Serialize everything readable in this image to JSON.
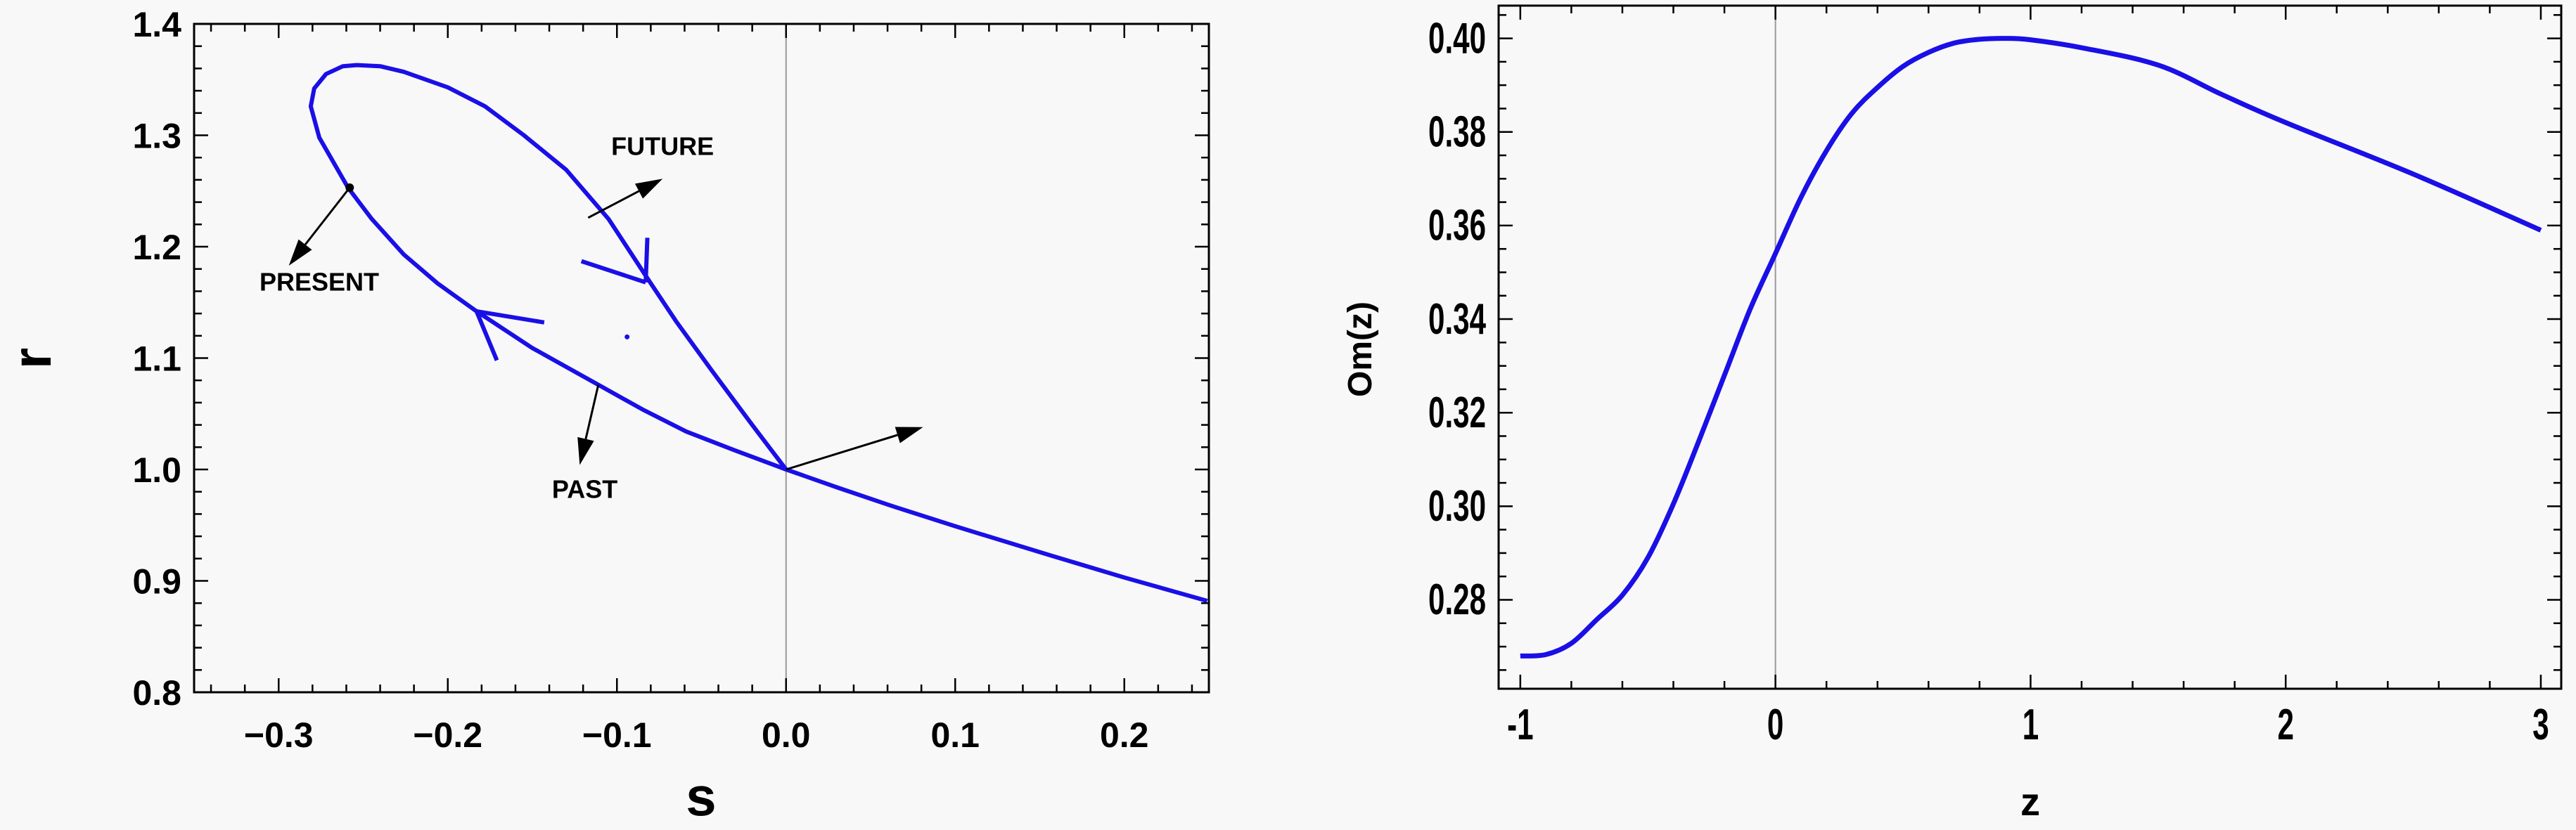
{
  "chart_data": [
    {
      "type": "line",
      "xlabel": "s",
      "ylabel": "r",
      "xlim": [
        -0.35,
        0.25
      ],
      "ylim": [
        0.8,
        1.4
      ],
      "xticks": [
        -0.3,
        -0.2,
        -0.1,
        0.0,
        0.1,
        0.2
      ],
      "xtick_labels": [
        "−0.3",
        "−0.2",
        "−0.1",
        "0.0",
        "0.1",
        "0.2"
      ],
      "yticks": [
        0.8,
        0.9,
        1.0,
        1.1,
        1.2,
        1.3,
        1.4
      ],
      "ytick_labels": [
        "0.8",
        "0.9",
        "1.0",
        "1.1",
        "1.2",
        "1.3",
        "1.4"
      ],
      "grid": false,
      "reference_line_x": 0,
      "line_color": "#1a0fe6",
      "series": [
        {
          "points": [
            [
              0.249,
              0.882
            ],
            [
              0.2,
              0.903
            ],
            [
              0.156,
              0.923
            ],
            [
              0.1,
              0.949
            ],
            [
              0.061,
              0.968
            ],
            [
              0.03,
              0.984
            ],
            [
              0,
              1.0
            ],
            [
              -0.03,
              1.017
            ],
            [
              -0.059,
              1.034
            ],
            [
              -0.085,
              1.054
            ],
            [
              -0.111,
              1.076
            ],
            [
              -0.15,
              1.109
            ],
            [
              -0.183,
              1.142
            ],
            [
              -0.206,
              1.167
            ],
            [
              -0.226,
              1.193
            ],
            [
              -0.245,
              1.225
            ],
            [
              -0.259,
              1.253
            ],
            [
              -0.276,
              1.298
            ],
            [
              -0.281,
              1.326
            ],
            [
              -0.279,
              1.342
            ],
            [
              -0.272,
              1.355
            ],
            [
              -0.262,
              1.362
            ],
            [
              -0.254,
              1.363
            ],
            [
              -0.24,
              1.362
            ],
            [
              -0.226,
              1.357
            ],
            [
              -0.2,
              1.343
            ],
            [
              -0.178,
              1.326
            ],
            [
              -0.155,
              1.3
            ],
            [
              -0.13,
              1.269
            ],
            [
              -0.105,
              1.225
            ],
            [
              -0.083,
              1.174
            ],
            [
              -0.065,
              1.133
            ],
            [
              -0.044,
              1.089
            ],
            [
              -0.02,
              1.04
            ],
            [
              0,
              1.0
            ]
          ]
        }
      ],
      "direction_arrows": [
        {
          "tip": [
            -0.083,
            1.168
          ],
          "wing1": [
            -0.121,
            1.187
          ],
          "wing2": [
            -0.082,
            1.208
          ]
        },
        {
          "tip": [
            -0.183,
            1.142
          ],
          "wing1": [
            -0.143,
            1.132
          ],
          "wing2": [
            -0.171,
            1.098
          ]
        }
      ],
      "marker_points": [
        {
          "label": "",
          "point": [
            -0.258,
            1.253
          ]
        },
        {
          "label": "",
          "point": [
            -0.094,
            1.119
          ]
        }
      ],
      "annotations": [
        {
          "text": "FUTURE",
          "text_at": [
            -0.073,
            1.29
          ],
          "arrow_from": [
            -0.117,
            1.226
          ],
          "arrow_to": [
            -0.073,
            1.261
          ]
        },
        {
          "text": "PRESENT",
          "text_at": [
            -0.276,
            1.168
          ],
          "arrow_from": [
            -0.258,
            1.253
          ],
          "arrow_to": [
            -0.294,
            1.183
          ]
        },
        {
          "text": "PAST",
          "text_at": [
            -0.119,
            0.982
          ],
          "arrow_from": [
            -0.111,
            1.076
          ],
          "arrow_to": [
            -0.122,
            1.004
          ]
        },
        {
          "text": "",
          "text_at": null,
          "arrow_from": [
            0,
            1.0
          ],
          "arrow_to": [
            0.081,
            1.038
          ]
        }
      ]
    },
    {
      "type": "line",
      "xlabel": "z",
      "ylabel": "Om(z)",
      "xlim": [
        -1.085,
        3.08
      ],
      "ylim": [
        0.261,
        0.407
      ],
      "xticks": [
        -1,
        0,
        1,
        2,
        3
      ],
      "xtick_labels": [
        "-1",
        "0",
        "1",
        "2",
        "3"
      ],
      "yticks": [
        0.28,
        0.3,
        0.32,
        0.34,
        0.36,
        0.38,
        0.4
      ],
      "ytick_labels": [
        "0.28",
        "0.30",
        "0.32",
        "0.34",
        "0.36",
        "0.38",
        "0.40"
      ],
      "grid": false,
      "reference_line_x": 0,
      "line_color": "#1a0fe6",
      "series": [
        {
          "x": [
            -1,
            -0.9,
            -0.8,
            -0.7,
            -0.6,
            -0.5,
            -0.4,
            -0.3,
            -0.2,
            -0.1,
            0,
            0.1,
            0.2,
            0.3,
            0.4,
            0.5,
            0.6,
            0.7,
            0.8,
            0.9,
            1.0,
            1.2,
            1.5,
            1.75,
            2.0,
            2.5,
            3.0
          ],
          "y": [
            0.268,
            0.2683,
            0.2707,
            0.2758,
            0.281,
            0.289,
            0.3005,
            0.314,
            0.328,
            0.342,
            0.354,
            0.366,
            0.376,
            0.384,
            0.3895,
            0.394,
            0.397,
            0.399,
            0.3998,
            0.4,
            0.3997,
            0.398,
            0.3943,
            0.388,
            0.382,
            0.371,
            0.359
          ]
        }
      ]
    }
  ]
}
